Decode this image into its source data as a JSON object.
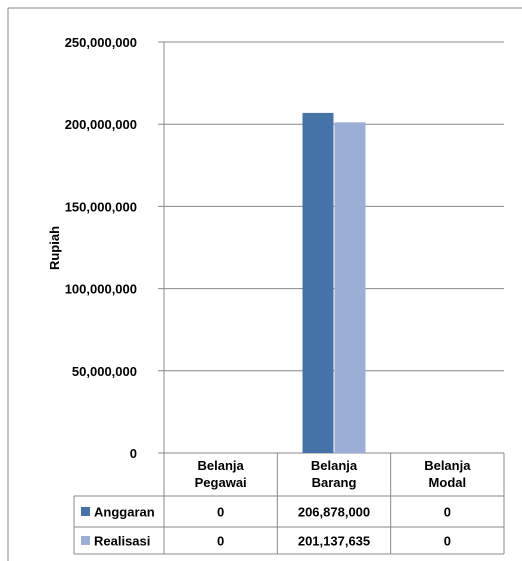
{
  "colors": {
    "anggaran": "#4572A7",
    "realisasi": "#9DAED6",
    "grid": "#888888",
    "border": "#888888"
  },
  "chart_data": {
    "type": "bar",
    "categories": [
      [
        "Belanja",
        "Pegawai"
      ],
      [
        "Belanja",
        "Barang"
      ],
      [
        "Belanja",
        "Modal"
      ]
    ],
    "series": [
      {
        "name": "Anggaran",
        "values": [
          0,
          206878000,
          0
        ],
        "value_labels": [
          "0",
          "206,878,000",
          "0"
        ]
      },
      {
        "name": "Realisasi",
        "values": [
          0,
          201137635,
          0
        ],
        "value_labels": [
          "0",
          "201,137,635",
          "0"
        ]
      }
    ],
    "ylabel": "Rupiah",
    "ylim": [
      0,
      250000000
    ],
    "yticks": [
      0,
      50000000,
      100000000,
      150000000,
      200000000,
      250000000
    ],
    "ytick_labels": [
      "0",
      "50,000,000",
      "100,000,000",
      "150,000,000",
      "200,000,000",
      "250,000,000"
    ],
    "grid": true,
    "legend": "data-table"
  }
}
